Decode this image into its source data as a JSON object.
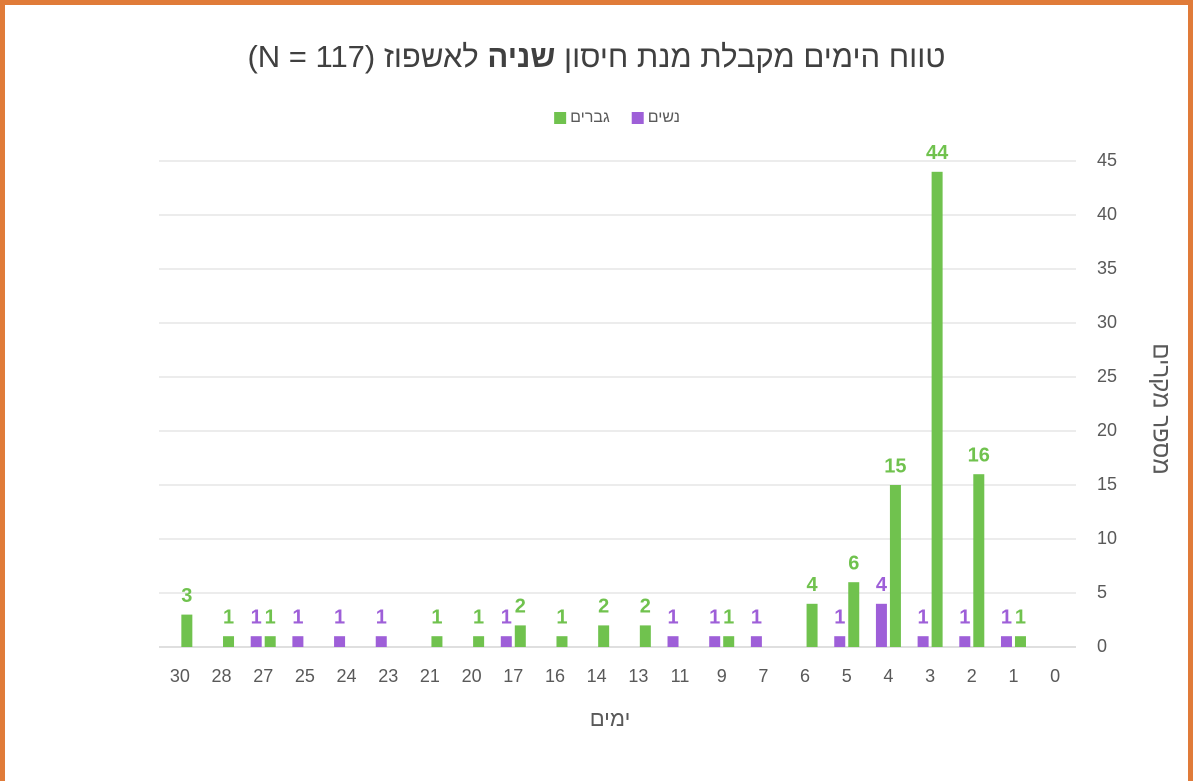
{
  "chart_data": {
    "type": "bar",
    "title": [
      "טווח הימים מקבלת מנת חיסון",
      "שניה",
      "לאשפוז (N = 117)"
    ],
    "x_label": "ימים",
    "y_label": "מספר מקרים",
    "categories": [
      "0",
      "1",
      "2",
      "3",
      "4",
      "5",
      "6",
      "7",
      "9",
      "11",
      "13",
      "14",
      "16",
      "17",
      "20",
      "21",
      "23",
      "24",
      "25",
      "27",
      "28",
      "30"
    ],
    "x_reversed": true,
    "series": [
      {
        "name": "נשים",
        "color": "#9e5fd8",
        "values": [
          null,
          1,
          1,
          1,
          4,
          1,
          null,
          1,
          1,
          1,
          null,
          null,
          null,
          1,
          null,
          null,
          1,
          1,
          1,
          1,
          null,
          null
        ]
      },
      {
        "name": "גברים",
        "color": "#70c24e",
        "values": [
          null,
          1,
          16,
          44,
          15,
          6,
          4,
          null,
          1,
          null,
          2,
          2,
          1,
          2,
          1,
          1,
          null,
          null,
          null,
          1,
          1,
          3
        ]
      }
    ],
    "ylim": [
      0,
      45
    ],
    "yticks": [
      0,
      5,
      10,
      15,
      20,
      25,
      30,
      35,
      40,
      45
    ],
    "grid": true,
    "legend": "top"
  }
}
